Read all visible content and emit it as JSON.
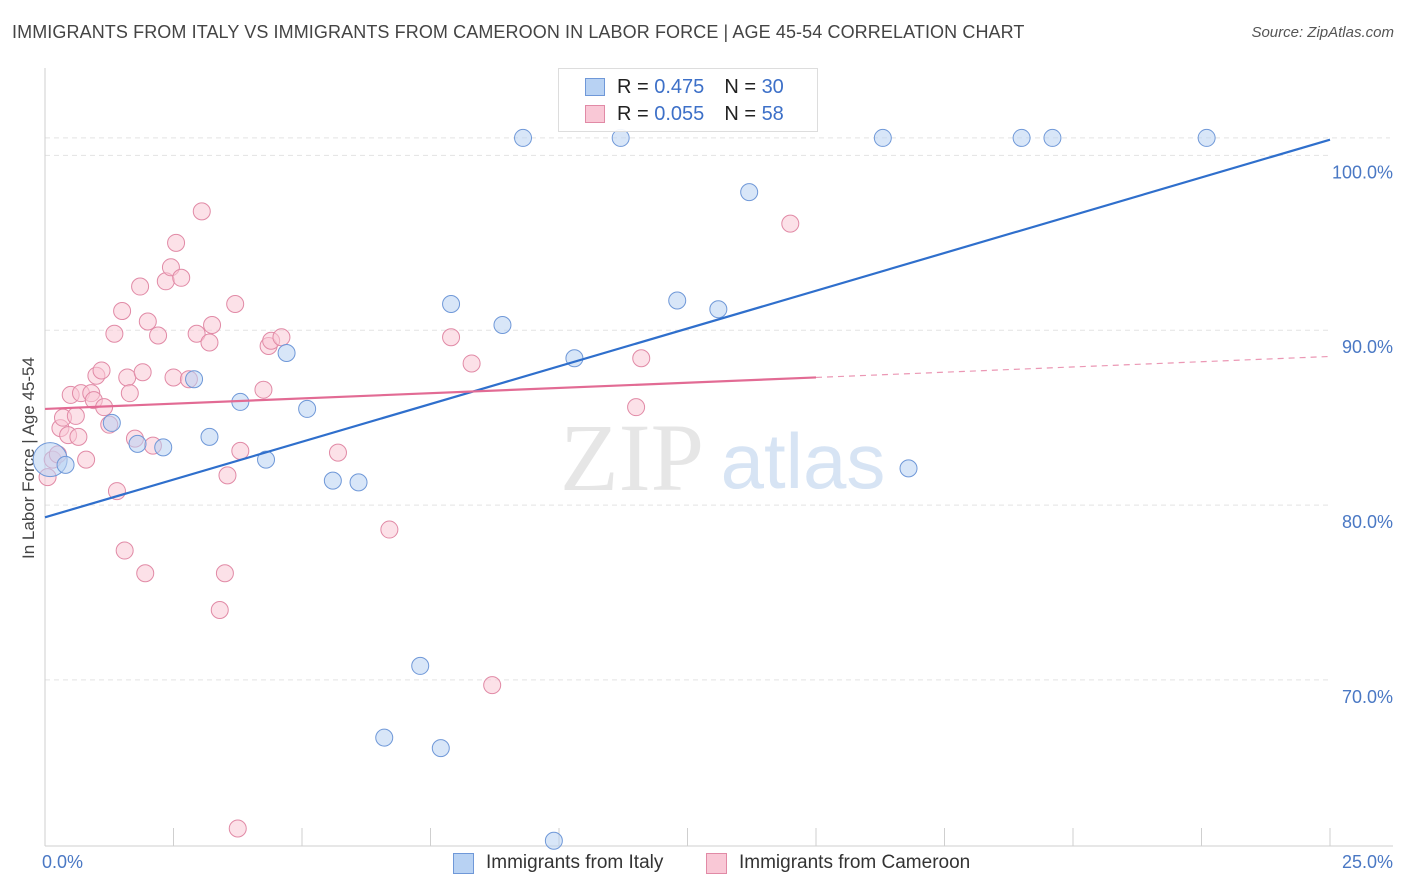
{
  "header": {
    "title": "IMMIGRANTS FROM ITALY VS IMMIGRANTS FROM CAMEROON IN LABOR FORCE | AGE 45-54 CORRELATION CHART",
    "source": "Source: ZipAtlas.com"
  },
  "watermark": {
    "zip": "ZIP",
    "atlas": "atlas"
  },
  "legend_top": {
    "rows": [
      {
        "r_label": "R =",
        "r_value": "0.475",
        "n_label": "N =",
        "n_value": "30"
      },
      {
        "r_label": "R =",
        "r_value": "0.055",
        "n_label": "N =",
        "n_value": "58"
      }
    ]
  },
  "legend_bottom": {
    "items": [
      "Immigrants from Italy",
      "Immigrants from Cameroon"
    ]
  },
  "colors": {
    "italy_fill": "#b8d2f3",
    "italy_stroke": "#6f98d8",
    "italy_line": "#2f6fcc",
    "cameroon_fill": "#f9c8d6",
    "cameroon_stroke": "#e18aa6",
    "cameroon_line": "#e26b94",
    "tick_text": "#4a78c4",
    "grid": "#e3e3e3"
  },
  "chart_data": {
    "type": "scatter",
    "title": "IMMIGRANTS FROM ITALY VS IMMIGRANTS FROM CAMEROON IN LABOR FORCE | AGE 45-54 CORRELATION CHART",
    "xlabel": "",
    "ylabel": "In Labor Force | Age 45-54",
    "xlim": [
      0,
      25
    ],
    "ylim": [
      60.5,
      105
    ],
    "x_tick_labels": [
      "0.0%",
      "25.0%"
    ],
    "y_ticks": [
      70,
      80,
      90,
      100
    ],
    "y_tick_labels": [
      "70.0%",
      "80.0%",
      "90.0%",
      "100.0%"
    ],
    "grid": true,
    "series": [
      {
        "name": "Immigrants from Italy",
        "r": 0.475,
        "n": 30,
        "trend": {
          "x": [
            0,
            25
          ],
          "y": [
            79.3,
            100.9
          ]
        },
        "points": [
          {
            "x": 0.1,
            "y": 82.6,
            "big": true
          },
          {
            "x": 1.3,
            "y": 84.7
          },
          {
            "x": 1.8,
            "y": 83.5
          },
          {
            "x": 2.3,
            "y": 83.3
          },
          {
            "x": 2.9,
            "y": 87.2
          },
          {
            "x": 3.2,
            "y": 83.9
          },
          {
            "x": 3.8,
            "y": 85.9
          },
          {
            "x": 4.3,
            "y": 82.6
          },
          {
            "x": 4.7,
            "y": 88.7
          },
          {
            "x": 5.1,
            "y": 85.5
          },
          {
            "x": 5.6,
            "y": 81.4
          },
          {
            "x": 6.1,
            "y": 81.3
          },
          {
            "x": 6.6,
            "y": 66.7
          },
          {
            "x": 7.3,
            "y": 70.8
          },
          {
            "x": 7.7,
            "y": 66.1
          },
          {
            "x": 7.9,
            "y": 91.5
          },
          {
            "x": 8.9,
            "y": 90.3
          },
          {
            "x": 9.3,
            "y": 101
          },
          {
            "x": 9.9,
            "y": 60.8
          },
          {
            "x": 10.3,
            "y": 88.4
          },
          {
            "x": 11.2,
            "y": 101
          },
          {
            "x": 12.3,
            "y": 91.7
          },
          {
            "x": 13.1,
            "y": 91.2
          },
          {
            "x": 13.7,
            "y": 97.9
          },
          {
            "x": 16.3,
            "y": 101
          },
          {
            "x": 16.8,
            "y": 82.1
          },
          {
            "x": 19.0,
            "y": 101
          },
          {
            "x": 19.6,
            "y": 101
          },
          {
            "x": 22.6,
            "y": 101
          },
          {
            "x": 0.4,
            "y": 82.3
          }
        ]
      },
      {
        "name": "Immigrants from Cameroon",
        "r": 0.055,
        "n": 58,
        "trend": {
          "x": [
            0,
            15
          ],
          "y": [
            85.5,
            87.3
          ]
        },
        "trend_extension": {
          "x": [
            15,
            25
          ],
          "y": [
            87.3,
            88.5
          ]
        },
        "points": [
          {
            "x": 0.05,
            "y": 81.6
          },
          {
            "x": 0.15,
            "y": 82.6
          },
          {
            "x": 0.25,
            "y": 82.9
          },
          {
            "x": 0.3,
            "y": 84.4
          },
          {
            "x": 0.35,
            "y": 85.0
          },
          {
            "x": 0.45,
            "y": 84.0
          },
          {
            "x": 0.5,
            "y": 86.3
          },
          {
            "x": 0.6,
            "y": 85.1
          },
          {
            "x": 0.65,
            "y": 83.9
          },
          {
            "x": 0.7,
            "y": 86.4
          },
          {
            "x": 0.8,
            "y": 82.6
          },
          {
            "x": 0.9,
            "y": 86.4
          },
          {
            "x": 0.95,
            "y": 86.0
          },
          {
            "x": 1.0,
            "y": 87.4
          },
          {
            "x": 1.1,
            "y": 87.7
          },
          {
            "x": 1.15,
            "y": 85.6
          },
          {
            "x": 1.25,
            "y": 84.6
          },
          {
            "x": 1.35,
            "y": 89.8
          },
          {
            "x": 1.4,
            "y": 80.8
          },
          {
            "x": 1.5,
            "y": 91.1
          },
          {
            "x": 1.55,
            "y": 77.4
          },
          {
            "x": 1.6,
            "y": 87.3
          },
          {
            "x": 1.65,
            "y": 86.4
          },
          {
            "x": 1.75,
            "y": 83.8
          },
          {
            "x": 1.85,
            "y": 92.5
          },
          {
            "x": 1.9,
            "y": 87.6
          },
          {
            "x": 1.95,
            "y": 76.1
          },
          {
            "x": 2.0,
            "y": 90.5
          },
          {
            "x": 2.1,
            "y": 83.4
          },
          {
            "x": 2.2,
            "y": 89.7
          },
          {
            "x": 2.35,
            "y": 92.8
          },
          {
            "x": 2.45,
            "y": 93.6
          },
          {
            "x": 2.5,
            "y": 87.3
          },
          {
            "x": 2.55,
            "y": 95.0
          },
          {
            "x": 2.65,
            "y": 93.0
          },
          {
            "x": 2.8,
            "y": 87.2
          },
          {
            "x": 2.95,
            "y": 89.8
          },
          {
            "x": 3.05,
            "y": 96.8
          },
          {
            "x": 3.2,
            "y": 89.3
          },
          {
            "x": 3.25,
            "y": 90.3
          },
          {
            "x": 3.4,
            "y": 74.0
          },
          {
            "x": 3.5,
            "y": 76.1
          },
          {
            "x": 3.55,
            "y": 81.7
          },
          {
            "x": 3.7,
            "y": 91.5
          },
          {
            "x": 3.75,
            "y": 61.5
          },
          {
            "x": 3.8,
            "y": 83.1
          },
          {
            "x": 4.25,
            "y": 86.6
          },
          {
            "x": 4.35,
            "y": 89.1
          },
          {
            "x": 4.4,
            "y": 89.4
          },
          {
            "x": 4.6,
            "y": 89.6
          },
          {
            "x": 5.7,
            "y": 83.0
          },
          {
            "x": 6.7,
            "y": 78.6
          },
          {
            "x": 7.9,
            "y": 89.6
          },
          {
            "x": 8.3,
            "y": 88.1
          },
          {
            "x": 8.7,
            "y": 69.7
          },
          {
            "x": 11.5,
            "y": 85.6
          },
          {
            "x": 11.6,
            "y": 88.4
          },
          {
            "x": 14.5,
            "y": 96.1
          }
        ]
      }
    ]
  }
}
